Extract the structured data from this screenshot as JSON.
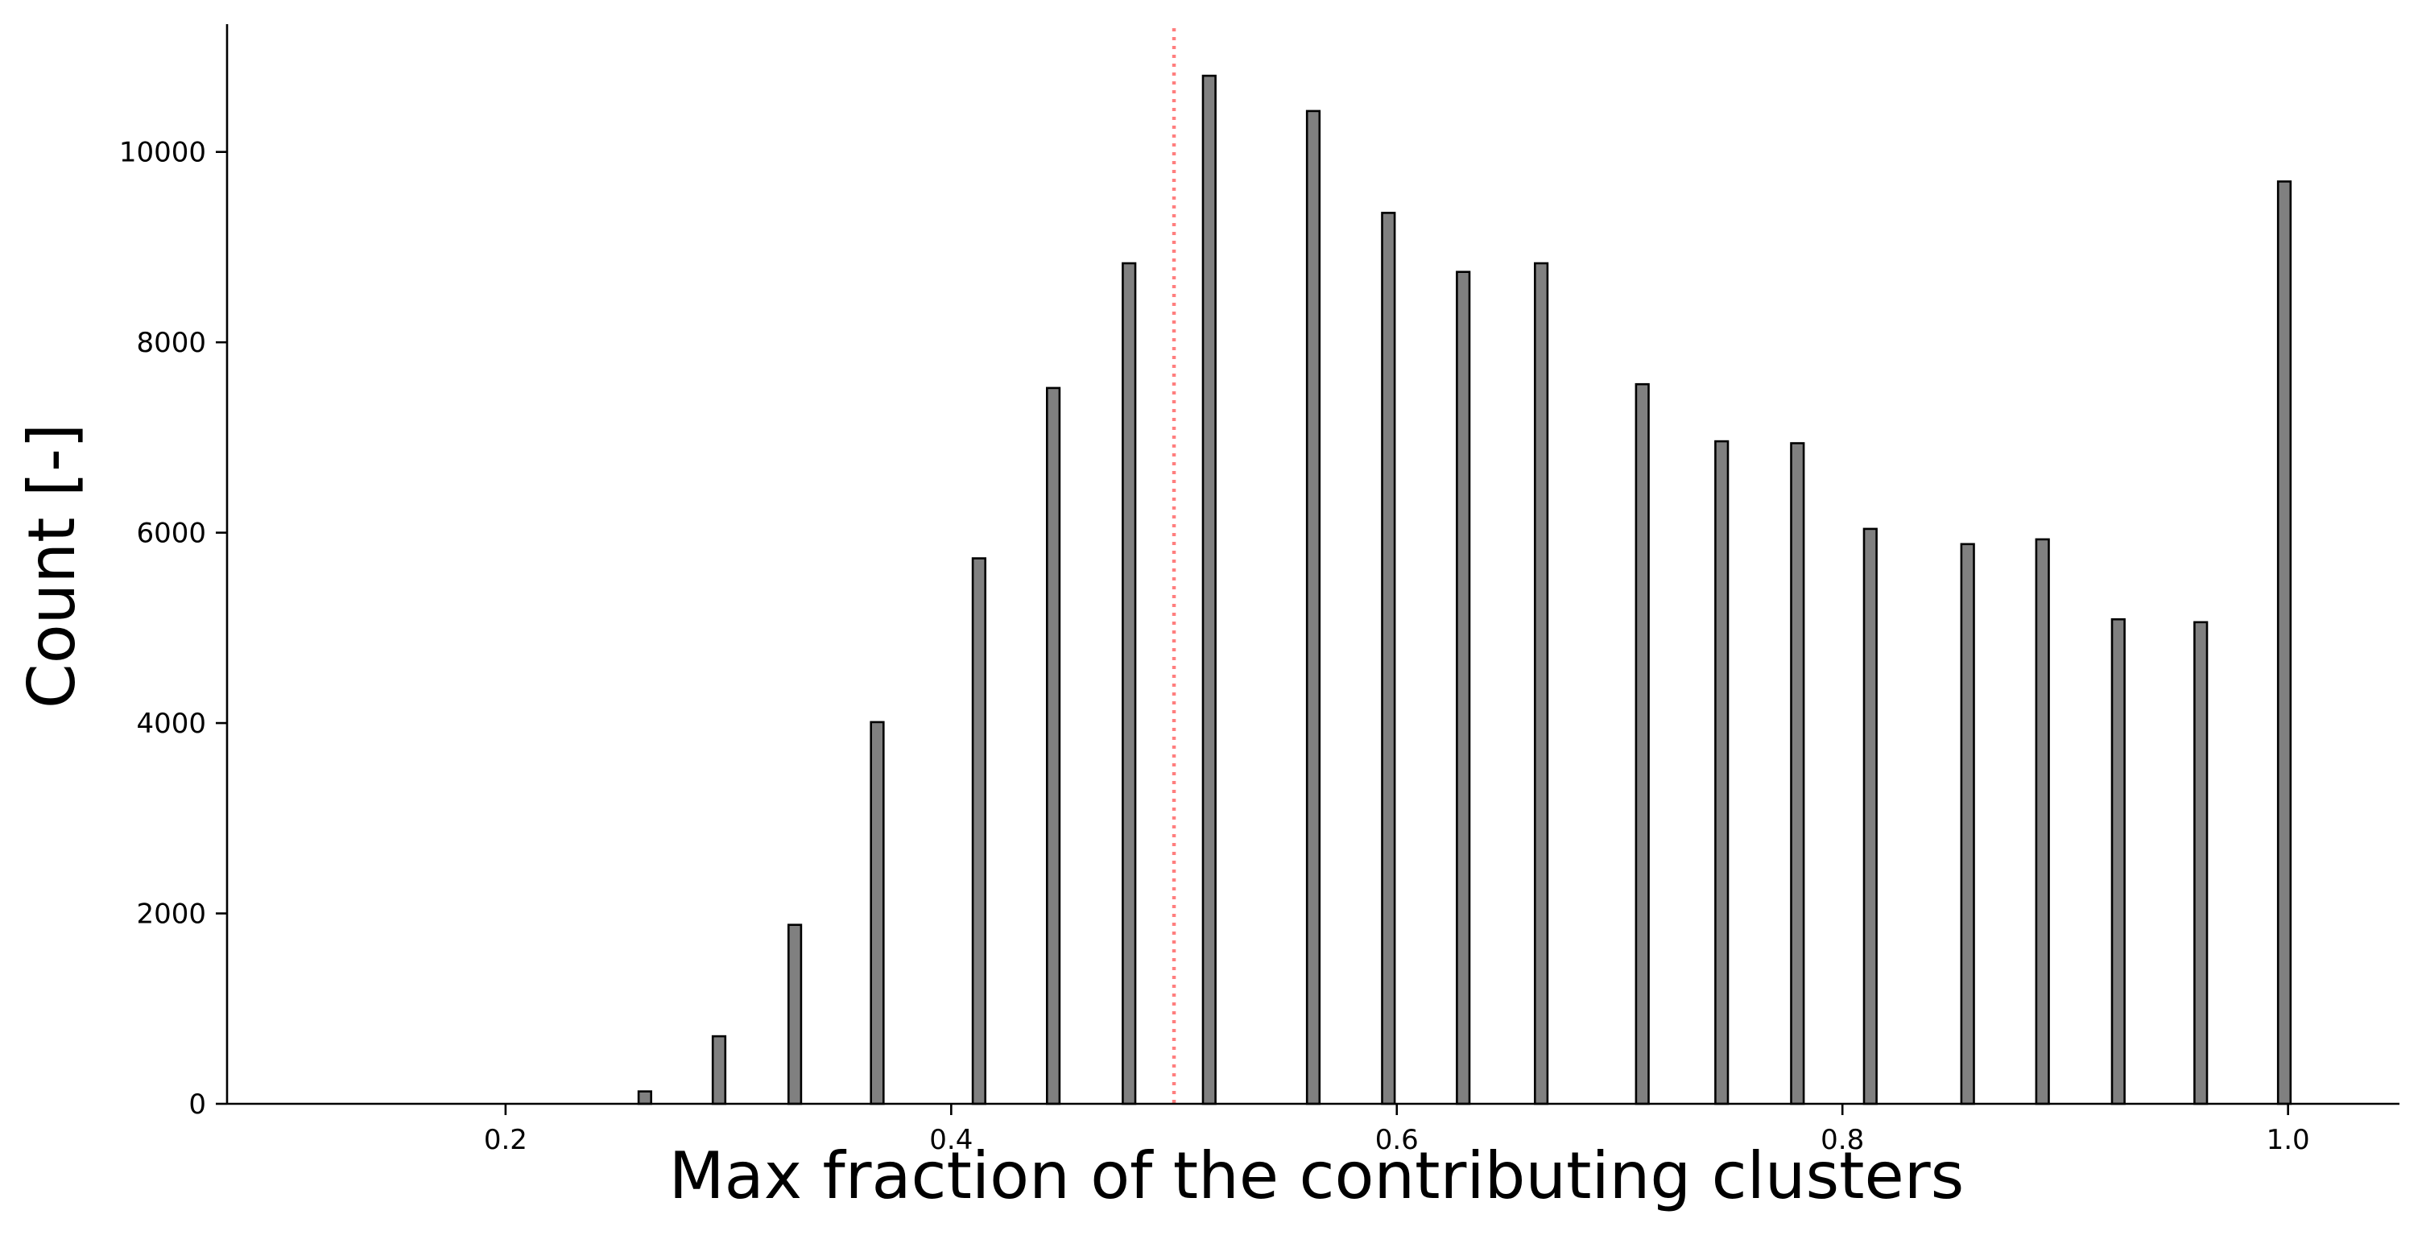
{
  "chart_data": {
    "type": "bar",
    "title": "",
    "xlabel": "Max fraction of the contributing clusters",
    "ylabel": "Count [-]",
    "xlim": [
      0.075,
      1.05
    ],
    "ylim": [
      0,
      11300
    ],
    "x_ticks": [
      0.2,
      0.4,
      0.6,
      0.8,
      1.0
    ],
    "x_tick_labels": [
      "0.2",
      "0.4",
      "0.6",
      "0.8",
      "1.0"
    ],
    "y_ticks": [
      0,
      2000,
      4000,
      6000,
      8000,
      10000
    ],
    "y_tick_labels": [
      "0",
      "2000",
      "4000",
      "6000",
      "8000",
      "10000"
    ],
    "bin_width": 0.0125,
    "x": [
      0.2188,
      0.2625,
      0.2958,
      0.3298,
      0.3668,
      0.4125,
      0.4458,
      0.4798,
      0.5158,
      0.5625,
      0.5962,
      0.6298,
      0.6648,
      0.7102,
      0.7458,
      0.7798,
      0.8125,
      0.8562,
      0.8898,
      0.9238,
      0.9608,
      0.9983
    ],
    "values": [
      0,
      130,
      710,
      1880,
      4010,
      5730,
      7520,
      8830,
      10800,
      10430,
      9360,
      8740,
      8830,
      7560,
      6960,
      6940,
      6040,
      5880,
      5930,
      5090,
      5060,
      9690
    ],
    "bar_color": "#808080",
    "bar_edge_color": "#000000",
    "reference_line": {
      "x": 0.5,
      "color": "#ff7f7f",
      "style": "dotted"
    },
    "grid": false,
    "legend": "none"
  }
}
